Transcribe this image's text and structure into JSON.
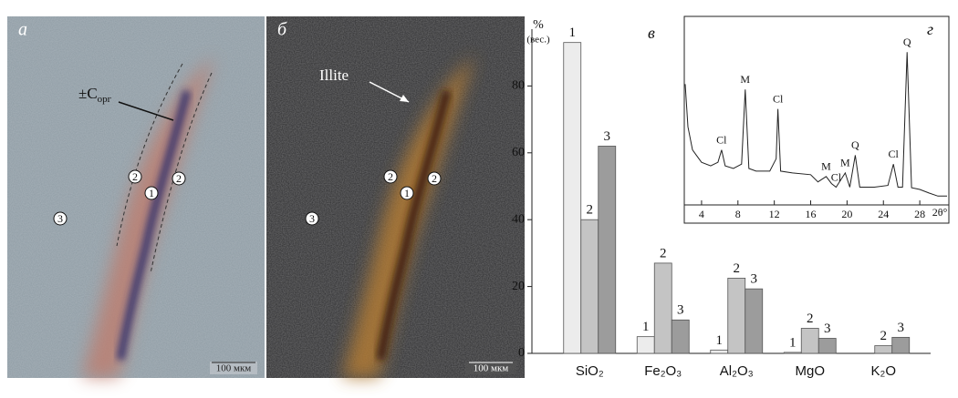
{
  "micrographs": [
    {
      "panel_label": "а",
      "annotation": "±C",
      "annotation_subscript": "орг",
      "markers": [
        "2",
        "2",
        "1",
        "3"
      ],
      "scale": "100 мкм"
    },
    {
      "panel_label": "б",
      "annotation": "Illite",
      "markers": [
        "2",
        "2",
        "1",
        "3"
      ],
      "scale": "100 мкм"
    }
  ],
  "chart_data": [
    {
      "type": "bar",
      "panel_label": "в",
      "y_unit": "%",
      "y_unit_note": "(вес.)",
      "categories": [
        "SiO₂",
        "Fe₂O₃",
        "Al₂O₃",
        "MgO",
        "K₂O"
      ],
      "series": [
        {
          "name": "1",
          "color": "#ececec",
          "values": [
            93,
            5,
            1,
            0.3,
            null
          ]
        },
        {
          "name": "2",
          "color": "#c4c4c4",
          "values": [
            40,
            27,
            22.5,
            7.5,
            2.3
          ]
        },
        {
          "name": "3",
          "color": "#9c9c9c",
          "values": [
            62,
            10,
            19.3,
            4.5,
            4.8
          ]
        }
      ],
      "ylim": [
        0,
        97
      ],
      "yticks": [
        0,
        20,
        40,
        60,
        80
      ]
    },
    {
      "type": "line",
      "panel_label": "г",
      "xlabel": "2θ°",
      "x": [
        2.2,
        2.5,
        3,
        4,
        5,
        5.8,
        6.2,
        6.6,
        7.5,
        8.4,
        8.8,
        9.2,
        10,
        11.5,
        12.2,
        12.4,
        12.7,
        14,
        16,
        16.8,
        17.7,
        18.3,
        18.8,
        19.8,
        20.3,
        20.9,
        21.4,
        23,
        24.5,
        25.1,
        25.6,
        26.1,
        26.6,
        27.1,
        28,
        29,
        30,
        31
      ],
      "series": [
        {
          "color": "#222222",
          "values": [
            68,
            44,
            31,
            24,
            22,
            24,
            31,
            22,
            20.5,
            23,
            65,
            20.5,
            19,
            19,
            26,
            54,
            19,
            18,
            17,
            13,
            16,
            12,
            10,
            18,
            10,
            28,
            10,
            10,
            11,
            23,
            10,
            10,
            86,
            9.7,
            8.7,
            6.7,
            5,
            5
          ]
        }
      ],
      "xlim": [
        2.1,
        31.2
      ],
      "ylim": [
        0,
        100
      ],
      "xticks": [
        4,
        8,
        12,
        16,
        20,
        24,
        28
      ],
      "annotations": [
        {
          "label": "Cl",
          "x": 6.2
        },
        {
          "label": "M",
          "x": 8.8
        },
        {
          "label": "Cl",
          "x": 12.4
        },
        {
          "label": "M",
          "x": 17.7
        },
        {
          "label": "Cl",
          "x": 18.8
        },
        {
          "label": "M",
          "x": 19.8
        },
        {
          "label": "Q",
          "x": 20.9
        },
        {
          "label": "Cl",
          "x": 25.1
        },
        {
          "label": "Q",
          "x": 26.6
        }
      ]
    }
  ]
}
